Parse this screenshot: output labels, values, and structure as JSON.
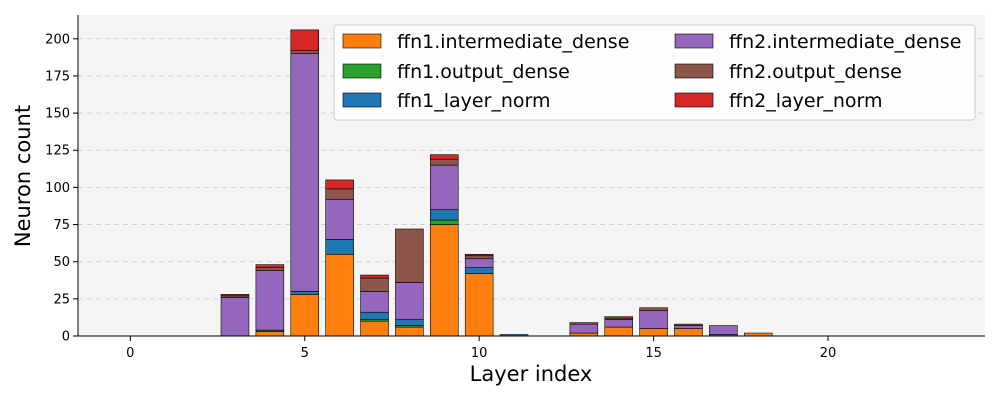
{
  "chart_data": {
    "type": "bar",
    "stacked": true,
    "xlabel": "Layer index",
    "ylabel": "Neuron count",
    "xlim": [
      -1.5,
      24.5
    ],
    "ylim": [
      0,
      216
    ],
    "xticks": [
      0,
      5,
      10,
      15,
      20
    ],
    "yticks": [
      0,
      25,
      50,
      75,
      100,
      125,
      150,
      175,
      200
    ],
    "grid": "y-dashed",
    "legend_position": "top-right",
    "x": [
      3,
      4,
      5,
      6,
      7,
      8,
      9,
      10,
      11,
      13,
      14,
      15,
      16,
      17,
      18
    ],
    "series": [
      {
        "name": "ffn1.intermediate_dense",
        "color": "#ff7f0e",
        "values": [
          0,
          3,
          28,
          55,
          10,
          6,
          75,
          42,
          0,
          2,
          6,
          5,
          5,
          0,
          2
        ]
      },
      {
        "name": "ffn1.output_dense",
        "color": "#2ca02c",
        "values": [
          0,
          0,
          0,
          0,
          1,
          1,
          3,
          0,
          0,
          0,
          0,
          0,
          0,
          0,
          0
        ]
      },
      {
        "name": "ffn1_layer_norm",
        "color": "#1f77b4",
        "values": [
          0,
          1,
          2,
          10,
          5,
          4,
          7,
          4,
          1,
          0,
          0,
          0,
          0,
          1,
          0
        ]
      },
      {
        "name": "ffn2.intermediate_dense",
        "color": "#9467bd",
        "values": [
          26,
          40,
          160,
          27,
          14,
          25,
          30,
          6,
          0,
          6,
          5,
          12,
          2,
          6,
          0
        ]
      },
      {
        "name": "ffn2.output_dense",
        "color": "#8c564b",
        "values": [
          1,
          2,
          2,
          7,
          9,
          36,
          4,
          2,
          0,
          1,
          1,
          2,
          1,
          0,
          0
        ]
      },
      {
        "name": "ffn2_layer_norm",
        "color": "#d62728",
        "values": [
          1,
          2,
          14,
          6,
          2,
          0,
          3,
          1,
          0,
          0,
          1,
          0,
          0,
          0,
          0
        ]
      }
    ]
  }
}
